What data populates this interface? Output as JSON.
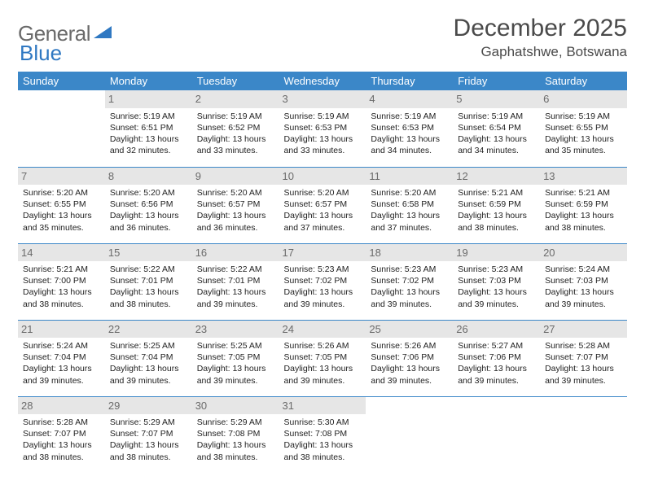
{
  "logo": {
    "text1": "General",
    "text2": "Blue"
  },
  "title": "December 2025",
  "location": "Gaphatshwe, Botswana",
  "colors": {
    "header_bg": "#3b87c8",
    "header_fg": "#ffffff",
    "daynum_bg": "#e6e6e6",
    "daynum_fg": "#6b6b6b",
    "rule": "#3b87c8",
    "logo_gray": "#6a6a6a",
    "logo_blue": "#2f78c2"
  },
  "weekdays": [
    "Sunday",
    "Monday",
    "Tuesday",
    "Wednesday",
    "Thursday",
    "Friday",
    "Saturday"
  ],
  "weeks": [
    [
      {
        "n": "",
        "sr": "",
        "ss": "",
        "d1": "",
        "d2": "",
        "empty": true
      },
      {
        "n": "1",
        "sr": "Sunrise: 5:19 AM",
        "ss": "Sunset: 6:51 PM",
        "d1": "Daylight: 13 hours",
        "d2": "and 32 minutes."
      },
      {
        "n": "2",
        "sr": "Sunrise: 5:19 AM",
        "ss": "Sunset: 6:52 PM",
        "d1": "Daylight: 13 hours",
        "d2": "and 33 minutes."
      },
      {
        "n": "3",
        "sr": "Sunrise: 5:19 AM",
        "ss": "Sunset: 6:53 PM",
        "d1": "Daylight: 13 hours",
        "d2": "and 33 minutes."
      },
      {
        "n": "4",
        "sr": "Sunrise: 5:19 AM",
        "ss": "Sunset: 6:53 PM",
        "d1": "Daylight: 13 hours",
        "d2": "and 34 minutes."
      },
      {
        "n": "5",
        "sr": "Sunrise: 5:19 AM",
        "ss": "Sunset: 6:54 PM",
        "d1": "Daylight: 13 hours",
        "d2": "and 34 minutes."
      },
      {
        "n": "6",
        "sr": "Sunrise: 5:19 AM",
        "ss": "Sunset: 6:55 PM",
        "d1": "Daylight: 13 hours",
        "d2": "and 35 minutes."
      }
    ],
    [
      {
        "n": "7",
        "sr": "Sunrise: 5:20 AM",
        "ss": "Sunset: 6:55 PM",
        "d1": "Daylight: 13 hours",
        "d2": "and 35 minutes."
      },
      {
        "n": "8",
        "sr": "Sunrise: 5:20 AM",
        "ss": "Sunset: 6:56 PM",
        "d1": "Daylight: 13 hours",
        "d2": "and 36 minutes."
      },
      {
        "n": "9",
        "sr": "Sunrise: 5:20 AM",
        "ss": "Sunset: 6:57 PM",
        "d1": "Daylight: 13 hours",
        "d2": "and 36 minutes."
      },
      {
        "n": "10",
        "sr": "Sunrise: 5:20 AM",
        "ss": "Sunset: 6:57 PM",
        "d1": "Daylight: 13 hours",
        "d2": "and 37 minutes."
      },
      {
        "n": "11",
        "sr": "Sunrise: 5:20 AM",
        "ss": "Sunset: 6:58 PM",
        "d1": "Daylight: 13 hours",
        "d2": "and 37 minutes."
      },
      {
        "n": "12",
        "sr": "Sunrise: 5:21 AM",
        "ss": "Sunset: 6:59 PM",
        "d1": "Daylight: 13 hours",
        "d2": "and 38 minutes."
      },
      {
        "n": "13",
        "sr": "Sunrise: 5:21 AM",
        "ss": "Sunset: 6:59 PM",
        "d1": "Daylight: 13 hours",
        "d2": "and 38 minutes."
      }
    ],
    [
      {
        "n": "14",
        "sr": "Sunrise: 5:21 AM",
        "ss": "Sunset: 7:00 PM",
        "d1": "Daylight: 13 hours",
        "d2": "and 38 minutes."
      },
      {
        "n": "15",
        "sr": "Sunrise: 5:22 AM",
        "ss": "Sunset: 7:01 PM",
        "d1": "Daylight: 13 hours",
        "d2": "and 38 minutes."
      },
      {
        "n": "16",
        "sr": "Sunrise: 5:22 AM",
        "ss": "Sunset: 7:01 PM",
        "d1": "Daylight: 13 hours",
        "d2": "and 39 minutes."
      },
      {
        "n": "17",
        "sr": "Sunrise: 5:23 AM",
        "ss": "Sunset: 7:02 PM",
        "d1": "Daylight: 13 hours",
        "d2": "and 39 minutes."
      },
      {
        "n": "18",
        "sr": "Sunrise: 5:23 AM",
        "ss": "Sunset: 7:02 PM",
        "d1": "Daylight: 13 hours",
        "d2": "and 39 minutes."
      },
      {
        "n": "19",
        "sr": "Sunrise: 5:23 AM",
        "ss": "Sunset: 7:03 PM",
        "d1": "Daylight: 13 hours",
        "d2": "and 39 minutes."
      },
      {
        "n": "20",
        "sr": "Sunrise: 5:24 AM",
        "ss": "Sunset: 7:03 PM",
        "d1": "Daylight: 13 hours",
        "d2": "and 39 minutes."
      }
    ],
    [
      {
        "n": "21",
        "sr": "Sunrise: 5:24 AM",
        "ss": "Sunset: 7:04 PM",
        "d1": "Daylight: 13 hours",
        "d2": "and 39 minutes."
      },
      {
        "n": "22",
        "sr": "Sunrise: 5:25 AM",
        "ss": "Sunset: 7:04 PM",
        "d1": "Daylight: 13 hours",
        "d2": "and 39 minutes."
      },
      {
        "n": "23",
        "sr": "Sunrise: 5:25 AM",
        "ss": "Sunset: 7:05 PM",
        "d1": "Daylight: 13 hours",
        "d2": "and 39 minutes."
      },
      {
        "n": "24",
        "sr": "Sunrise: 5:26 AM",
        "ss": "Sunset: 7:05 PM",
        "d1": "Daylight: 13 hours",
        "d2": "and 39 minutes."
      },
      {
        "n": "25",
        "sr": "Sunrise: 5:26 AM",
        "ss": "Sunset: 7:06 PM",
        "d1": "Daylight: 13 hours",
        "d2": "and 39 minutes."
      },
      {
        "n": "26",
        "sr": "Sunrise: 5:27 AM",
        "ss": "Sunset: 7:06 PM",
        "d1": "Daylight: 13 hours",
        "d2": "and 39 minutes."
      },
      {
        "n": "27",
        "sr": "Sunrise: 5:28 AM",
        "ss": "Sunset: 7:07 PM",
        "d1": "Daylight: 13 hours",
        "d2": "and 39 minutes."
      }
    ],
    [
      {
        "n": "28",
        "sr": "Sunrise: 5:28 AM",
        "ss": "Sunset: 7:07 PM",
        "d1": "Daylight: 13 hours",
        "d2": "and 38 minutes."
      },
      {
        "n": "29",
        "sr": "Sunrise: 5:29 AM",
        "ss": "Sunset: 7:07 PM",
        "d1": "Daylight: 13 hours",
        "d2": "and 38 minutes."
      },
      {
        "n": "30",
        "sr": "Sunrise: 5:29 AM",
        "ss": "Sunset: 7:08 PM",
        "d1": "Daylight: 13 hours",
        "d2": "and 38 minutes."
      },
      {
        "n": "31",
        "sr": "Sunrise: 5:30 AM",
        "ss": "Sunset: 7:08 PM",
        "d1": "Daylight: 13 hours",
        "d2": "and 38 minutes."
      },
      {
        "n": "",
        "sr": "",
        "ss": "",
        "d1": "",
        "d2": "",
        "empty": true
      },
      {
        "n": "",
        "sr": "",
        "ss": "",
        "d1": "",
        "d2": "",
        "empty": true
      },
      {
        "n": "",
        "sr": "",
        "ss": "",
        "d1": "",
        "d2": "",
        "empty": true
      }
    ]
  ]
}
